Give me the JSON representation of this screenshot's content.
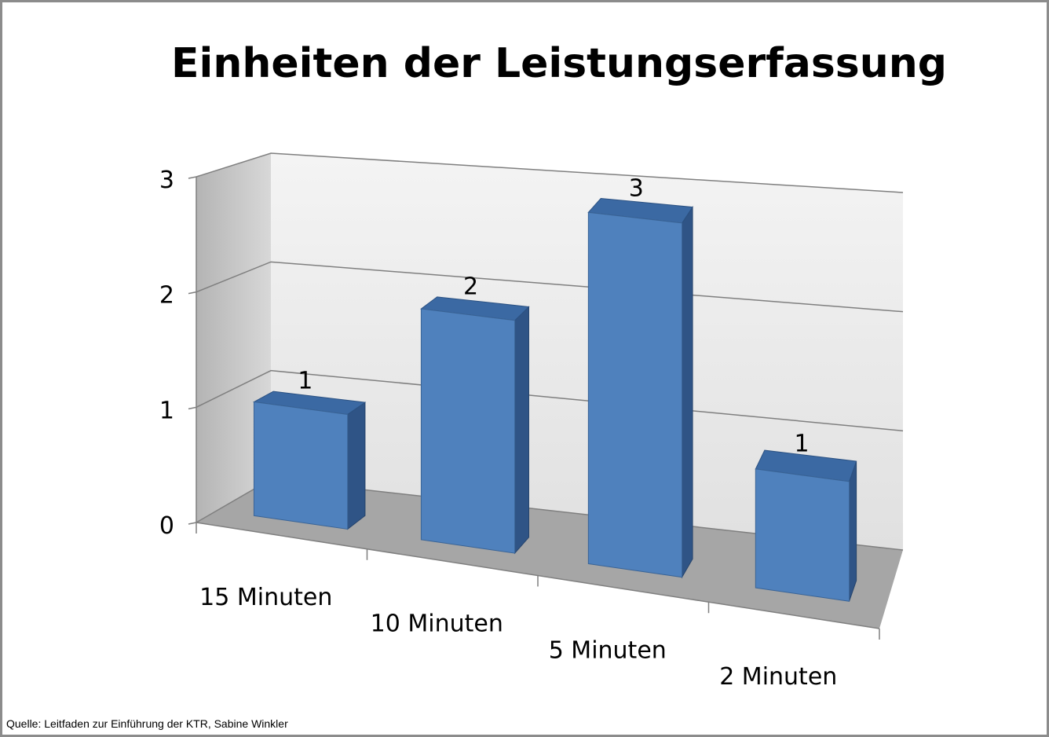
{
  "chart_data": {
    "type": "bar3d",
    "title": "Einheiten der Leistungserfassung",
    "categories": [
      "15 Minuten",
      "10 Minuten",
      "5 Minuten",
      "2 Minuten"
    ],
    "values": [
      1,
      2,
      3,
      1
    ],
    "color": "#4f81bd",
    "ylim": [
      0,
      3
    ],
    "yticks": [
      0,
      1,
      2,
      3
    ],
    "grid": true
  },
  "source": "Quelle: Leitfaden zur Einführung der KTR, Sabine Winkler"
}
